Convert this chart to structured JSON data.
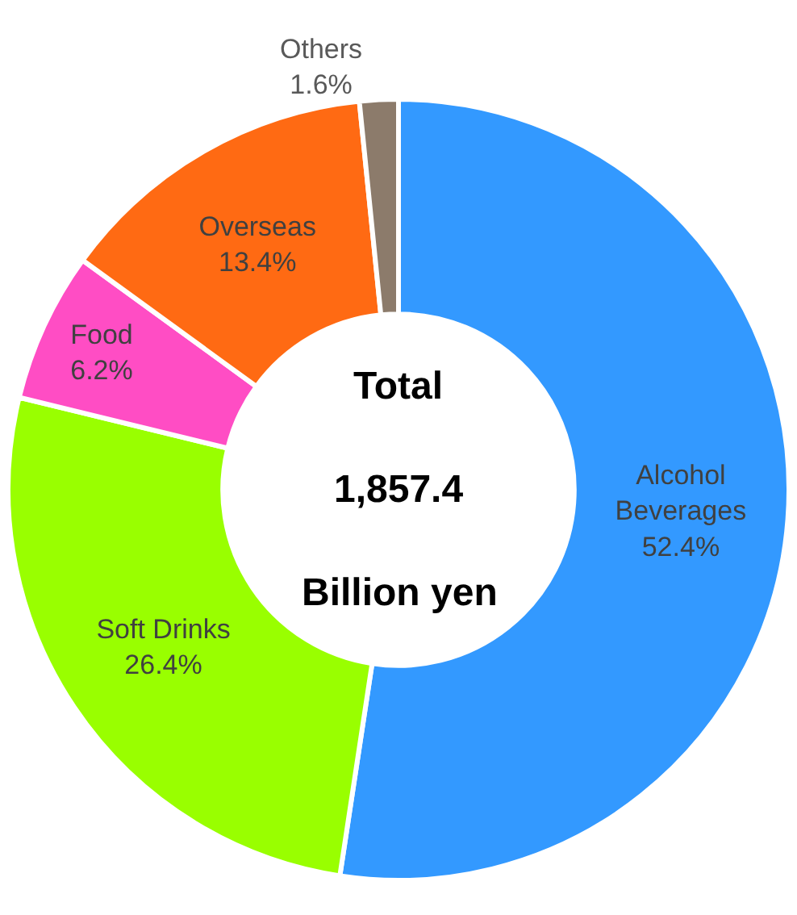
{
  "chart_data": {
    "type": "donut",
    "categories": [
      "Alcohol\nBeverages",
      "Soft Drinks",
      "Food",
      "Overseas",
      "Others"
    ],
    "values": [
      52.4,
      26.4,
      6.2,
      13.4,
      1.6
    ],
    "value_labels": [
      "52.4%",
      "26.4%",
      "6.2%",
      "13.4%",
      "1.6%"
    ],
    "colors": [
      "#3399ff",
      "#99ff00",
      "#ff4dc4",
      "#ff6a13",
      "#8c7b6b"
    ],
    "annotations": [
      "Total",
      "1,857.4",
      "Billion yen"
    ],
    "legend": false
  }
}
